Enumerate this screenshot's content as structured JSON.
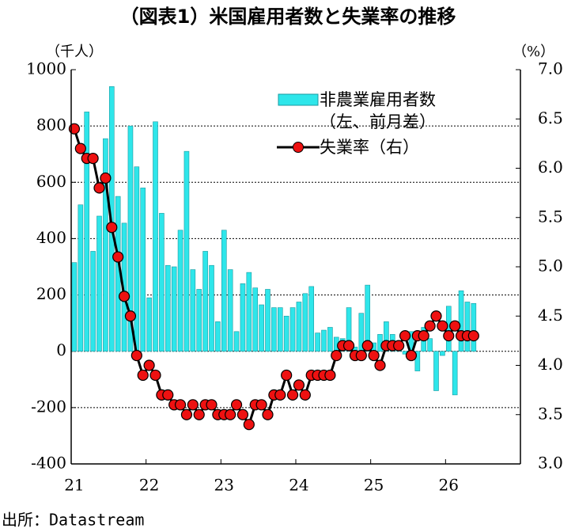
{
  "chart_data": {
    "type": "bar+line",
    "title": "（図表1）米国雇用者数と失業率の推移",
    "ylabel": "（千人）",
    "y2label": "（%）",
    "source": "出所：Datastream",
    "legend": "upper right",
    "grid": true,
    "categories": [
      "21",
      null,
      null,
      null,
      null,
      null,
      null,
      null,
      null,
      null,
      null,
      null,
      "22",
      null,
      null,
      null,
      null,
      null,
      null,
      null,
      null,
      null,
      null,
      null,
      "23",
      null,
      null,
      null,
      null,
      null,
      null,
      null,
      null,
      null,
      null,
      null,
      "24",
      null,
      null,
      null,
      null,
      null,
      null,
      null,
      null,
      null,
      null,
      null,
      "25",
      null,
      null,
      null,
      null,
      null,
      null,
      null,
      null,
      null,
      null,
      null,
      "26",
      null,
      null,
      null,
      null
    ],
    "ylim": [
      -400,
      1000
    ],
    "yticks": [
      -400,
      -200,
      0,
      200,
      400,
      600,
      800,
      1000
    ],
    "y2lim": [
      3,
      7
    ],
    "y2ticks": [
      {
        "value": 3,
        "label": "3.0"
      },
      {
        "value": 3.5,
        "label": "3.5"
      },
      {
        "value": 4,
        "label": "4.0"
      },
      {
        "value": 4.5,
        "label": "4.5"
      },
      {
        "value": 5,
        "label": "5.0"
      },
      {
        "value": 5.5,
        "label": "5.5"
      },
      {
        "value": 6,
        "label": "6.0"
      },
      {
        "value": 6.5,
        "label": "6.5"
      },
      {
        "value": 7,
        "label": "7.0"
      }
    ],
    "series": [
      {
        "name": "非農業雇用者数（左、前月差）",
        "type": "bar",
        "color": "#2ee6ea",
        "values": [
          315,
          520,
          850,
          355,
          480,
          755,
          940,
          550,
          455,
          800,
          655,
          580,
          190,
          815,
          490,
          305,
          300,
          430,
          710,
          290,
          220,
          355,
          305,
          105,
          430,
          290,
          70,
          240,
          280,
          225,
          165,
          220,
          155,
          155,
          125,
          155,
          175,
          205,
          230,
          65,
          75,
          85,
          50,
          45,
          155,
          15,
          135,
          235,
          30,
          60,
          105,
          60,
          10,
          -10,
          70,
          -70,
          85,
          45,
          -140,
          -15,
          160,
          -155,
          215,
          175,
          170
        ]
      },
      {
        "name": "失業率（右）",
        "type": "line",
        "axis": "y2",
        "color": "#ee1111",
        "values": [
          6.4,
          6.2,
          6.1,
          6.1,
          5.8,
          5.9,
          5.4,
          5.1,
          4.7,
          4.5,
          4.1,
          3.9,
          4.0,
          3.9,
          3.7,
          3.7,
          3.6,
          3.6,
          3.5,
          3.6,
          3.5,
          3.6,
          3.6,
          3.5,
          3.5,
          3.5,
          3.6,
          3.5,
          3.4,
          3.6,
          3.6,
          3.5,
          3.7,
          3.7,
          3.9,
          3.7,
          3.8,
          3.7,
          3.9,
          3.9,
          3.9,
          3.9,
          4.1,
          4.2,
          4.2,
          4.1,
          4.1,
          4.2,
          4.1,
          4.0,
          4.2,
          4.2,
          4.2,
          4.3,
          4.1,
          4.3,
          4.3,
          4.4,
          4.5,
          4.4,
          4.3,
          4.4,
          4.3,
          4.3,
          4.3
        ]
      }
    ]
  }
}
